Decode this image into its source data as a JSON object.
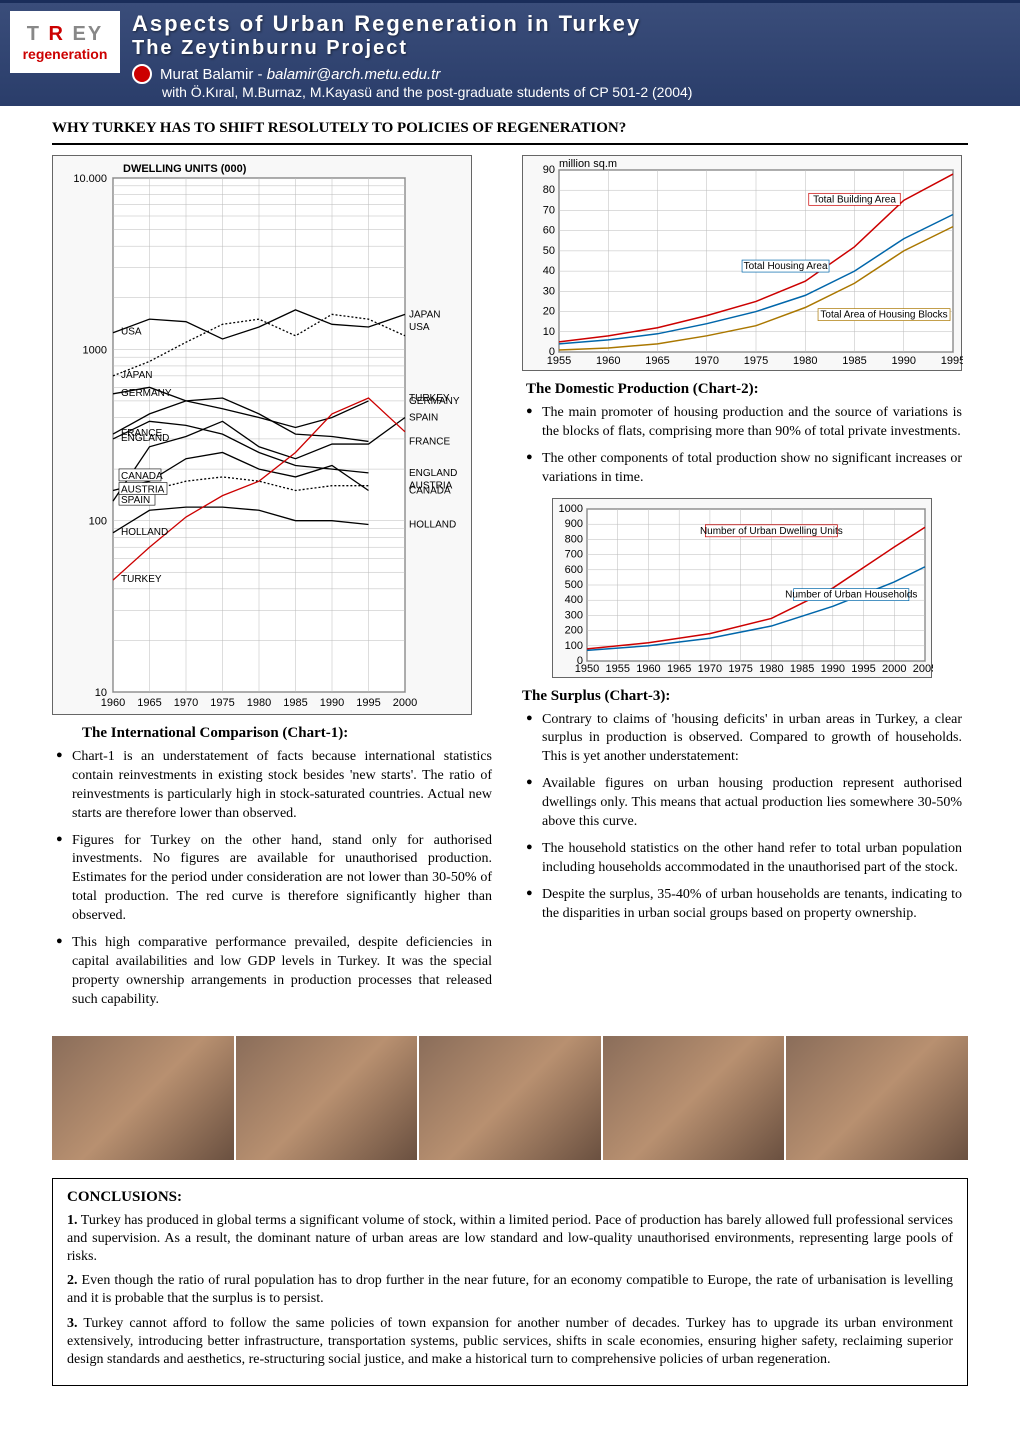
{
  "header": {
    "logo_top": "T R EY",
    "logo_bottom": "regeneration",
    "title": "Aspects of Urban Regeneration in Turkey",
    "subtitle": "The Zeytinburnu Project",
    "author": "Murat Balamir - ",
    "email": "balamir@arch.metu.edu.tr",
    "with": "with Ö.Kıral, M.Burnaz, M.Kayasü and the post-graduate students of CP 501-2 (2004)"
  },
  "section_heading": "WHY TURKEY HAS TO SHIFT RESOLUTELY TO POLICIES OF REGENERATION?",
  "chart1": {
    "type": "line",
    "yaxis_title": "DWELLING UNITS (000)",
    "yscale": "log",
    "ylim": [
      10,
      10000
    ],
    "yticks": [
      10,
      100,
      1000,
      10000
    ],
    "ytick_labels": [
      "10",
      "100",
      "1000",
      "10.000"
    ],
    "xlim": [
      1960,
      2000
    ],
    "xticks": [
      1960,
      1965,
      1970,
      1975,
      1980,
      1985,
      1990,
      1995,
      2000
    ],
    "background_color": "#ffffff",
    "grid_color": "#bbbbbb",
    "turkey_color": "#cc0000",
    "other_color": "#000000",
    "series": {
      "USA": {
        "x": [
          1960,
          1965,
          1970,
          1975,
          1980,
          1985,
          1990,
          1995,
          2000
        ],
        "y": [
          1250,
          1500,
          1450,
          1150,
          1350,
          1700,
          1400,
          1350,
          1600
        ],
        "style": "solid"
      },
      "JAPAN": {
        "x": [
          1960,
          1965,
          1970,
          1975,
          1980,
          1985,
          1990,
          1995,
          2000
        ],
        "y": [
          700,
          850,
          1100,
          1400,
          1500,
          1200,
          1600,
          1500,
          1200
        ],
        "style": "dotted"
      },
      "GERMANY": {
        "x": [
          1960,
          1965,
          1970,
          1975,
          1980,
          1985,
          1990,
          1995
        ],
        "y": [
          550,
          600,
          500,
          450,
          400,
          350,
          400,
          500
        ],
        "style": "solid"
      },
      "FRANCE": {
        "x": [
          1960,
          1965,
          1970,
          1975,
          1980,
          1985,
          1990,
          1995
        ],
        "y": [
          320,
          420,
          500,
          520,
          420,
          320,
          310,
          290
        ],
        "style": "solid"
      },
      "ENGLAND": {
        "x": [
          1960,
          1965,
          1970,
          1975,
          1980,
          1985,
          1990,
          1995
        ],
        "y": [
          300,
          380,
          360,
          320,
          250,
          210,
          200,
          190
        ],
        "style": "solid"
      },
      "CANADA": {
        "x": [
          1960,
          1965,
          1970,
          1975,
          1980,
          1985,
          1990,
          1995
        ],
        "y": [
          150,
          170,
          230,
          250,
          200,
          180,
          210,
          150
        ],
        "style": "solid"
      },
      "SPAIN": {
        "x": [
          1960,
          1965,
          1970,
          1975,
          1980,
          1985,
          1990,
          1995,
          2000
        ],
        "y": [
          130,
          270,
          310,
          380,
          270,
          230,
          280,
          280,
          400
        ],
        "style": "solid"
      },
      "HOLLAND": {
        "x": [
          1960,
          1965,
          1970,
          1975,
          1980,
          1985,
          1990,
          1995
        ],
        "y": [
          85,
          115,
          120,
          120,
          115,
          100,
          100,
          95
        ],
        "style": "solid"
      },
      "AUSTRIA": {
        "x": [
          1965,
          1970,
          1975,
          1980,
          1985,
          1990,
          1995
        ],
        "y": [
          150,
          170,
          180,
          170,
          150,
          160,
          160
        ],
        "style": "dotted"
      },
      "TURKEY": {
        "x": [
          1960,
          1965,
          1970,
          1975,
          1980,
          1985,
          1990,
          1995,
          2000
        ],
        "y": [
          45,
          70,
          105,
          140,
          170,
          250,
          420,
          520,
          330
        ],
        "style": "solid",
        "color": "#cc0000"
      }
    },
    "left_labels": [
      {
        "name": "USA",
        "y": 1250
      },
      {
        "name": "JAPAN",
        "y": 700
      },
      {
        "name": "GERMANY",
        "y": 550
      },
      {
        "name": "FRANCE",
        "y": 320
      },
      {
        "name": "ENGLAND",
        "y": 300
      },
      {
        "name": "CANADA",
        "y": 180,
        "box": true
      },
      {
        "name": "SPAIN",
        "y": 130,
        "box": true
      },
      {
        "name": "HOLLAND",
        "y": 85
      },
      {
        "name": "AUSTRIA",
        "y": 150,
        "box": true
      },
      {
        "name": "TURKEY",
        "y": 45
      }
    ],
    "right_labels": [
      {
        "name": "JAPAN",
        "y": 1600
      },
      {
        "name": "USA",
        "y": 1350
      },
      {
        "name": "TURKEY",
        "y": 520
      },
      {
        "name": "GERMANY",
        "y": 500
      },
      {
        "name": "SPAIN",
        "y": 400
      },
      {
        "name": "FRANCE",
        "y": 290
      },
      {
        "name": "ENGLAND",
        "y": 190
      },
      {
        "name": "CANADA",
        "y": 150
      },
      {
        "name": "AUSTRIA",
        "y": 160
      },
      {
        "name": "HOLLAND",
        "y": 95
      }
    ]
  },
  "chart1_caption": "The International Comparison (Chart-1):",
  "chart1_bullets": [
    "Chart-1 is an understatement of facts because international statistics contain reinvestments in existing stock besides 'new starts'. The ratio of reinvestments is particularly high in stock-saturated countries. Actual new starts are therefore lower than observed.",
    "Figures for Turkey on the other hand, stand only for authorised investments. No figures are available for unauthorised production. Estimates for the period under consideration are not lower than 30-50% of total production. The red curve is therefore significantly higher than observed.",
    "This high comparative performance prevailed, despite deficiencies in capital availabilities and low GDP levels in Turkey. It was the special property ownership arrangements in production processes that released such capability."
  ],
  "chart2": {
    "type": "line",
    "yaxis_title": "million sq.m",
    "ylim": [
      0,
      90
    ],
    "yticks": [
      0,
      10,
      20,
      30,
      40,
      50,
      60,
      70,
      80,
      90
    ],
    "xlim": [
      1955,
      1995
    ],
    "xticks": [
      1955,
      1960,
      1965,
      1970,
      1975,
      1980,
      1985,
      1990,
      1995
    ],
    "background_color": "#ffffff",
    "grid_color": "#bbbbbb",
    "series": {
      "Total Building Area": {
        "x": [
          1955,
          1960,
          1965,
          1970,
          1975,
          1980,
          1985,
          1990,
          1995
        ],
        "y": [
          5,
          8,
          12,
          18,
          25,
          35,
          52,
          75,
          88
        ],
        "color": "#cc0000"
      },
      "Total Housing Area": {
        "x": [
          1955,
          1960,
          1965,
          1970,
          1975,
          1980,
          1985,
          1990,
          1995
        ],
        "y": [
          4,
          6,
          9,
          14,
          20,
          28,
          40,
          56,
          68
        ],
        "color": "#0066aa"
      },
      "Total Area of Housing Blocks": {
        "x": [
          1955,
          1960,
          1965,
          1970,
          1975,
          1980,
          1985,
          1990,
          1995
        ],
        "y": [
          1,
          2,
          4,
          8,
          13,
          22,
          34,
          50,
          62
        ],
        "color": "#aa7700"
      }
    }
  },
  "chart2_caption": "The Domestic Production (Chart-2):",
  "chart2_bullets": [
    "The main promoter of housing production and the source of variations is the blocks of flats, comprising more than 90% of total private investments.",
    "The other components of total production show no significant increases or variations in time."
  ],
  "chart3": {
    "type": "line",
    "ylim": [
      0,
      1000
    ],
    "yticks": [
      0,
      100,
      200,
      300,
      400,
      500,
      600,
      700,
      800,
      900,
      1000
    ],
    "xlim": [
      1950,
      2005
    ],
    "xticks": [
      1950,
      1955,
      1960,
      1965,
      1970,
      1975,
      1980,
      1985,
      1990,
      1995,
      2000,
      2005
    ],
    "background_color": "#ffffff",
    "grid_color": "#bbbbbb",
    "series": {
      "Number of Urban Dwelling Units": {
        "x": [
          1950,
          1960,
          1970,
          1980,
          1990,
          2000,
          2005
        ],
        "y": [
          80,
          120,
          180,
          280,
          480,
          750,
          880
        ],
        "color": "#cc0000"
      },
      "Number of Urban Households": {
        "x": [
          1950,
          1960,
          1970,
          1980,
          1990,
          2000,
          2005
        ],
        "y": [
          70,
          100,
          150,
          230,
          360,
          520,
          620
        ],
        "color": "#0066aa"
      }
    }
  },
  "chart3_caption": "The Surplus (Chart-3):",
  "chart3_bullets": [
    "Contrary to claims of 'housing deficits' in urban areas in Turkey, a clear surplus in production is observed. Compared to growth of households. This is yet another understatement:",
    "Available figures on urban housing production represent authorised dwellings only. This means that actual production lies somewhere 30-50% above this curve.",
    "The household statistics on the other hand refer to total urban population including households accommodated in the unauthorised part of the stock.",
    "Despite the surplus, 35-40% of urban households are tenants, indicating to the disparities in urban social groups based on property ownership."
  ],
  "conclusions": {
    "heading": "CONCLUSIONS:",
    "items": [
      "Turkey has produced in global terms a significant volume of stock, within a limited period. Pace of production has barely allowed full professional services and supervision. As a result, the dominant nature of urban areas are low standard and low-quality unauthorised environments, representing large pools of risks.",
      "Even though the ratio of rural population has to drop further in the near future, for an economy compatible to Europe, the rate of urbanisation is levelling and it is probable that the surplus is to persist.",
      "Turkey cannot afford to follow the same policies of town expansion for another number of decades. Turkey has to upgrade its urban environment extensively, introducing better infrastructure, transportation systems, public services, shifts in scale economies, ensuring higher safety, reclaiming superior design standards and aesthetics, re-structuring social justice, and make a historical turn to comprehensive policies of urban regeneration."
    ]
  }
}
